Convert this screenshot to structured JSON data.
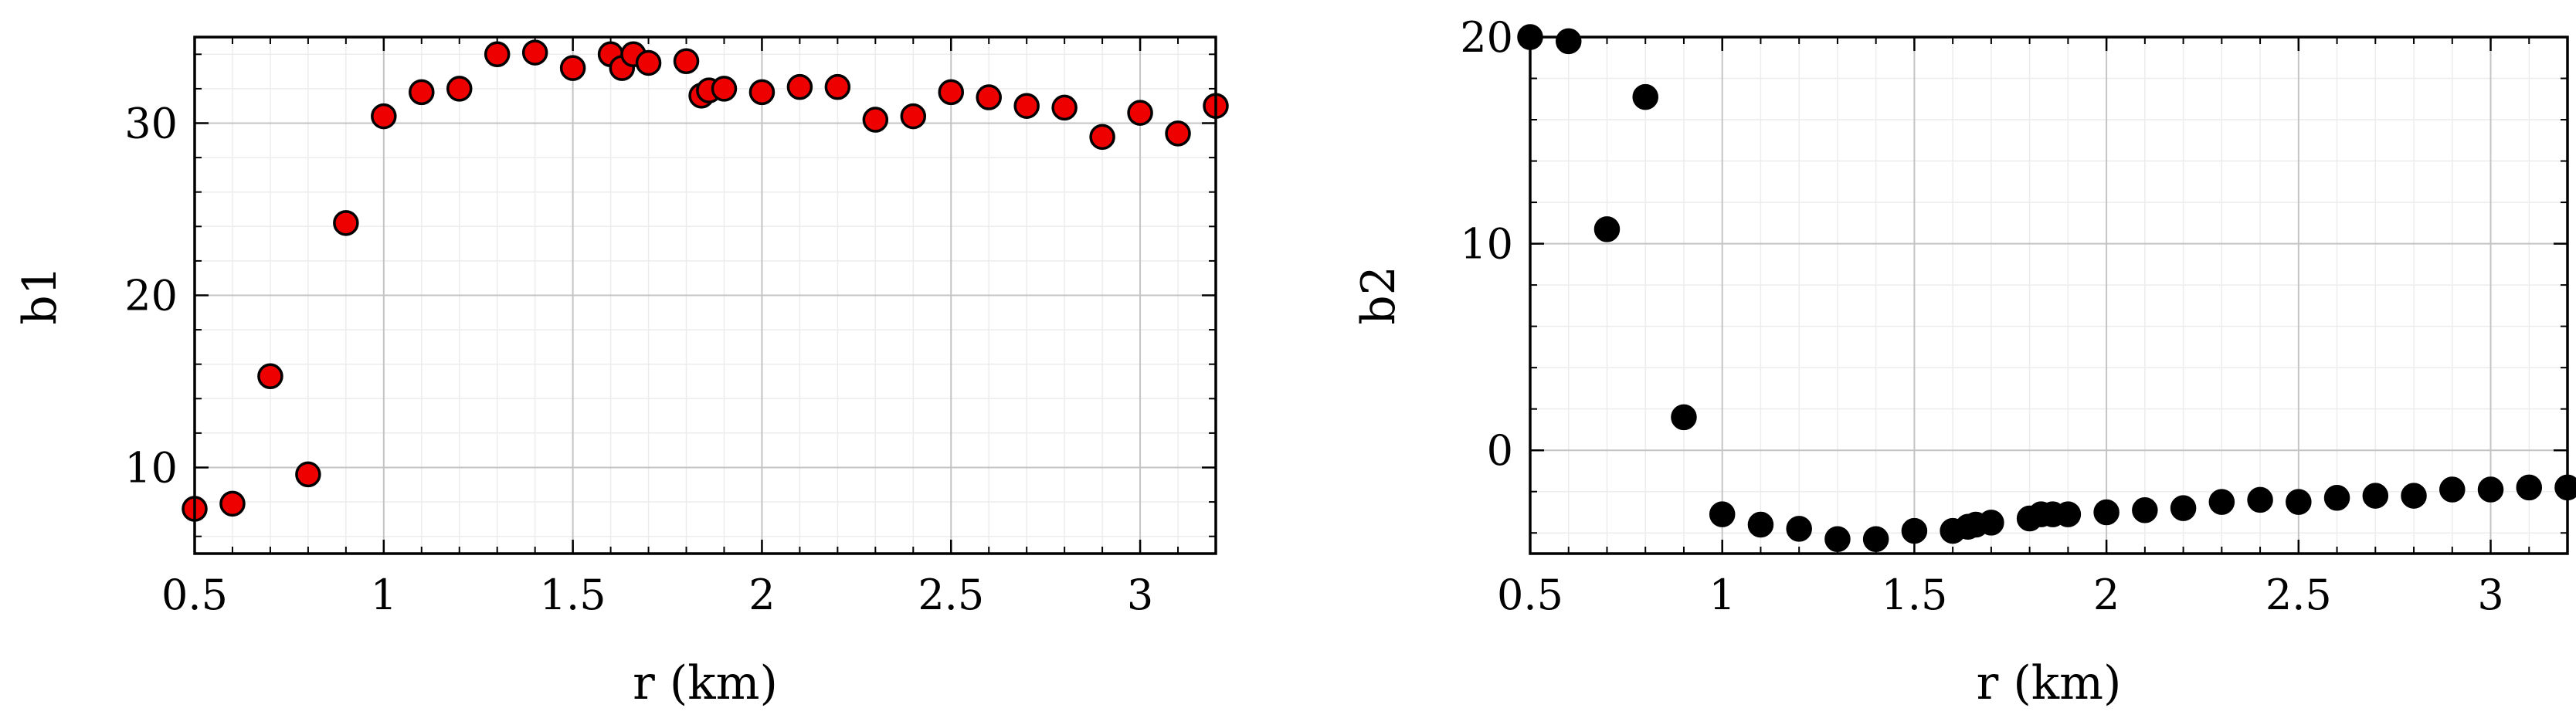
{
  "chart_data": [
    {
      "type": "scatter",
      "title": "",
      "xlabel": "r (km)",
      "ylabel": "b1",
      "xlim": [
        0.5,
        3.2
      ],
      "ylim": [
        5,
        35
      ],
      "grid": true,
      "minor_grid": true,
      "x_ticks": [
        0.5,
        1,
        1.5,
        2,
        2.5,
        3
      ],
      "x_tick_labels": [
        "0.5",
        "1",
        "1.5",
        "2",
        "2.5",
        "3"
      ],
      "y_ticks": [
        10,
        20,
        30
      ],
      "y_tick_labels": [
        "10",
        "20",
        "30"
      ],
      "marker_color": "#ee0000",
      "marker_edge": "#000000",
      "series": [
        {
          "x": [
            0.5,
            0.6,
            0.7,
            0.8,
            0.9,
            1.0,
            1.1,
            1.2,
            1.3,
            1.4,
            1.5,
            1.6,
            1.63,
            1.66,
            1.7,
            1.8,
            1.84,
            1.86,
            1.9,
            2.0,
            2.1,
            2.2,
            2.3,
            2.4,
            2.5,
            2.6,
            2.7,
            2.8,
            2.9,
            3.0,
            3.1,
            3.2
          ],
          "y": [
            7.6,
            7.9,
            15.3,
            9.6,
            24.2,
            30.4,
            31.8,
            32.0,
            34.0,
            34.1,
            33.2,
            34.0,
            33.2,
            34.0,
            33.5,
            33.6,
            31.6,
            31.9,
            32.0,
            31.8,
            32.1,
            32.1,
            30.2,
            30.4,
            31.8,
            31.5,
            31.0,
            30.9,
            29.2,
            30.6,
            29.4,
            31.0
          ]
        }
      ]
    },
    {
      "type": "scatter",
      "title": "",
      "xlabel": "r (km)",
      "ylabel": "b2",
      "xlim": [
        0.5,
        3.2
      ],
      "ylim": [
        -5,
        20
      ],
      "grid": true,
      "minor_grid": true,
      "x_ticks": [
        0.5,
        1,
        1.5,
        2,
        2.5,
        3
      ],
      "x_tick_labels": [
        "0.5",
        "1",
        "1.5",
        "2",
        "2.5",
        "3"
      ],
      "y_ticks": [
        0,
        10,
        20
      ],
      "y_tick_labels": [
        "0",
        "10",
        "20"
      ],
      "marker_color": "#000000",
      "marker_edge": "#000000",
      "series": [
        {
          "x": [
            0.5,
            0.6,
            0.7,
            0.8,
            0.9,
            1.0,
            1.1,
            1.2,
            1.3,
            1.4,
            1.5,
            1.6,
            1.64,
            1.66,
            1.7,
            1.8,
            1.83,
            1.86,
            1.9,
            2.0,
            2.1,
            2.2,
            2.3,
            2.4,
            2.5,
            2.6,
            2.7,
            2.8,
            2.9,
            3.0,
            3.1,
            3.2
          ],
          "y": [
            20.0,
            19.8,
            10.7,
            17.1,
            1.6,
            -3.1,
            -3.6,
            -3.8,
            -4.3,
            -4.3,
            -3.9,
            -3.9,
            -3.7,
            -3.6,
            -3.5,
            -3.3,
            -3.1,
            -3.1,
            -3.1,
            -3.0,
            -2.9,
            -2.8,
            -2.5,
            -2.4,
            -2.5,
            -2.3,
            -2.2,
            -2.2,
            -1.9,
            -1.9,
            -1.8,
            -1.8
          ]
        }
      ]
    }
  ]
}
